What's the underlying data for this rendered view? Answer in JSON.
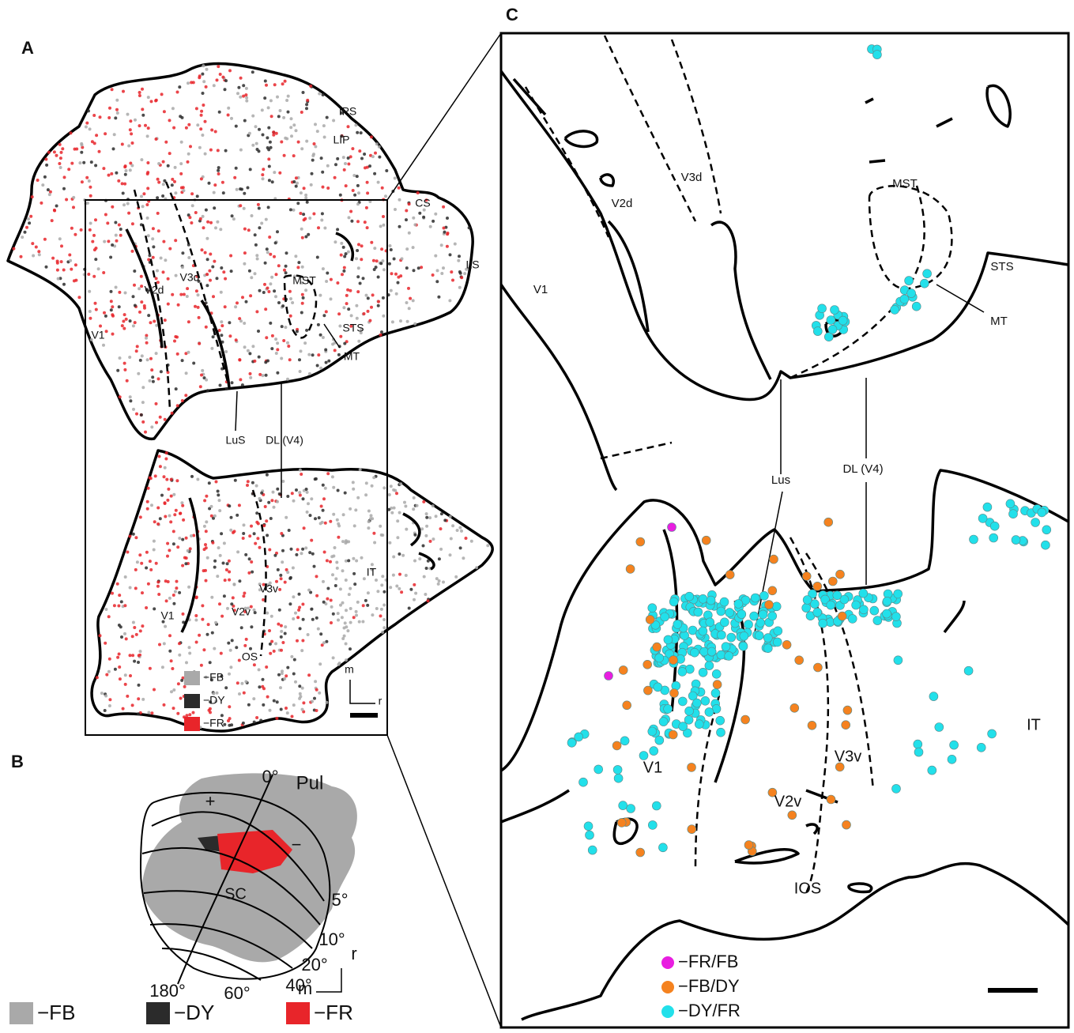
{
  "panel_a": {
    "label": "A",
    "areas": [
      "IPS",
      "LIP",
      "CS",
      "LS",
      "V2d",
      "V3d",
      "MST",
      "V1",
      "STS",
      "MT",
      "LuS",
      "DL (V4)",
      "IT",
      "V1",
      "V3v",
      "V2v",
      "OS"
    ],
    "orientation": {
      "medial": "m",
      "rostral": "r"
    },
    "legend": [
      {
        "label": "−FB",
        "color": "#a9a9a9"
      },
      {
        "label": "−DY",
        "color": "#2b2b2b"
      },
      {
        "label": "−FR",
        "color": "#e8252a"
      }
    ]
  },
  "panel_b": {
    "label": "B",
    "labels": [
      "0°",
      "Pul",
      "+",
      "−",
      "SC",
      "5°",
      "10°",
      "20°",
      "40°",
      "60°",
      "180°"
    ],
    "orientation": {
      "medial": "m",
      "rostral": "r"
    },
    "legend": [
      {
        "label": "−FB",
        "color": "#a9a9a9"
      },
      {
        "label": "−DY",
        "color": "#2b2b2b"
      },
      {
        "label": "−FR",
        "color": "#e8252a"
      }
    ]
  },
  "panel_c": {
    "label": "C",
    "areas": [
      "V1",
      "V2d",
      "V3d",
      "MST",
      "STS",
      "MT",
      "Lus",
      "DL (V4)",
      "IT",
      "V1",
      "V3v",
      "V2v",
      "IOS"
    ],
    "legend": [
      {
        "label": "−FR/FB",
        "color": "#e81ee0"
      },
      {
        "label": "−FB/DY",
        "color": "#f5821f"
      },
      {
        "label": "−DY/FR",
        "color": "#22e0ea"
      }
    ]
  }
}
